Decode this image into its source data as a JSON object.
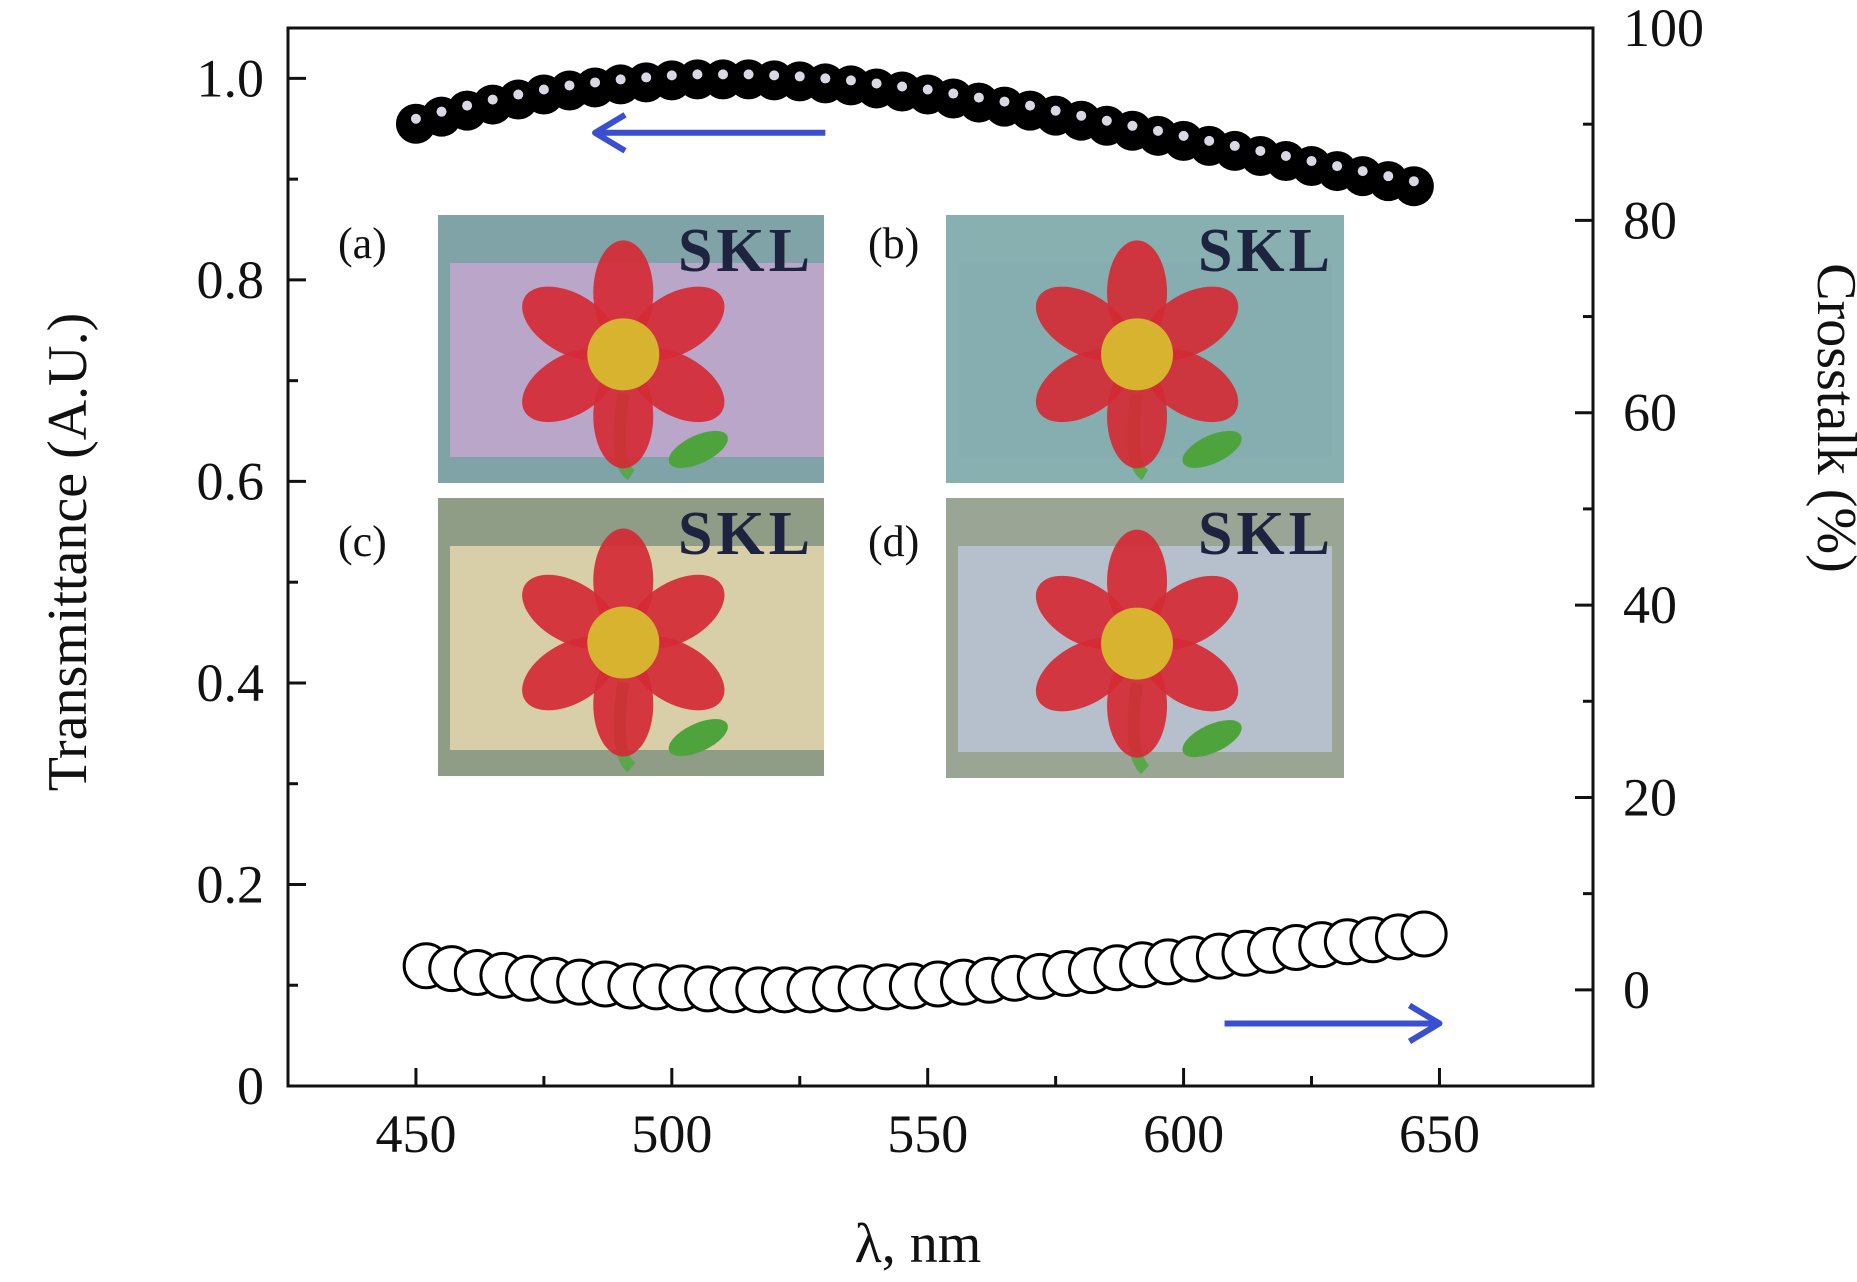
{
  "chart_data": {
    "type": "scatter",
    "title": "",
    "xlabel": "λ, nm",
    "ylabel_left": "Transmittance (A.U.)",
    "ylabel_right": "Crosstalk (%)",
    "xlim": [
      425,
      680
    ],
    "ylim_left": [
      0,
      1.05
    ],
    "ylim_right": [
      -10,
      100
    ],
    "x_ticks": [
      450,
      500,
      550,
      600,
      650
    ],
    "y_left_ticks": [
      0,
      0.2,
      0.4,
      0.6,
      0.8,
      1.0
    ],
    "y_left_tick_labels": [
      "0",
      "0.2",
      "0.4",
      "0.6",
      "0.8",
      "1.0"
    ],
    "y_right_ticks": [
      0,
      20,
      40,
      60,
      80,
      100
    ],
    "grid": false,
    "series": [
      {
        "axis": "left",
        "marker": "filled-circle",
        "color": "#000000",
        "x": [
          450,
          455,
          460,
          465,
          470,
          475,
          480,
          485,
          490,
          495,
          500,
          505,
          510,
          515,
          520,
          525,
          530,
          535,
          540,
          545,
          550,
          555,
          560,
          565,
          570,
          575,
          580,
          585,
          590,
          595,
          600,
          605,
          610,
          615,
          620,
          625,
          630,
          635,
          640,
          645
        ],
        "y": [
          0.955,
          0.962,
          0.968,
          0.974,
          0.979,
          0.984,
          0.988,
          0.991,
          0.994,
          0.996,
          0.998,
          0.999,
          0.999,
          0.999,
          0.998,
          0.997,
          0.995,
          0.993,
          0.99,
          0.987,
          0.984,
          0.98,
          0.976,
          0.972,
          0.968,
          0.963,
          0.958,
          0.953,
          0.948,
          0.943,
          0.938,
          0.933,
          0.928,
          0.923,
          0.918,
          0.913,
          0.908,
          0.903,
          0.898,
          0.893
        ]
      },
      {
        "axis": "right",
        "marker": "open-circle",
        "color": "#000000",
        "x": [
          452,
          457,
          462,
          467,
          472,
          477,
          482,
          487,
          492,
          497,
          502,
          507,
          512,
          517,
          522,
          527,
          532,
          537,
          542,
          547,
          552,
          557,
          562,
          567,
          572,
          577,
          582,
          587,
          592,
          597,
          602,
          607,
          612,
          617,
          622,
          627,
          632,
          637,
          642,
          647
        ],
        "y": [
          2.5,
          2.2,
          1.8,
          1.5,
          1.2,
          1.0,
          0.8,
          0.6,
          0.4,
          0.3,
          0.2,
          0.1,
          0.0,
          0.0,
          0.0,
          0.0,
          0.1,
          0.2,
          0.3,
          0.4,
          0.6,
          0.8,
          1.0,
          1.2,
          1.4,
          1.7,
          2.0,
          2.3,
          2.6,
          2.9,
          3.2,
          3.5,
          3.8,
          4.1,
          4.4,
          4.7,
          5.0,
          5.2,
          5.5,
          5.8
        ]
      }
    ],
    "arrows": [
      {
        "direction": "left",
        "color": "#3a4fd0"
      },
      {
        "direction": "right",
        "color": "#3a4fd0"
      }
    ],
    "insets": [
      {
        "label": "(a)",
        "text": "SKL",
        "bg": "#b9a6c8",
        "band": "#7fa3a6"
      },
      {
        "label": "(b)",
        "text": "SKL",
        "bg": "#86aeb0",
        "band": "#88b0b0"
      },
      {
        "label": "(c)",
        "text": "SKL",
        "bg": "#d8cfa8",
        "band": "#8f9c86"
      },
      {
        "label": "(d)",
        "text": "SKL",
        "bg": "#b6c0cc",
        "band": "#9aa595"
      }
    ]
  }
}
